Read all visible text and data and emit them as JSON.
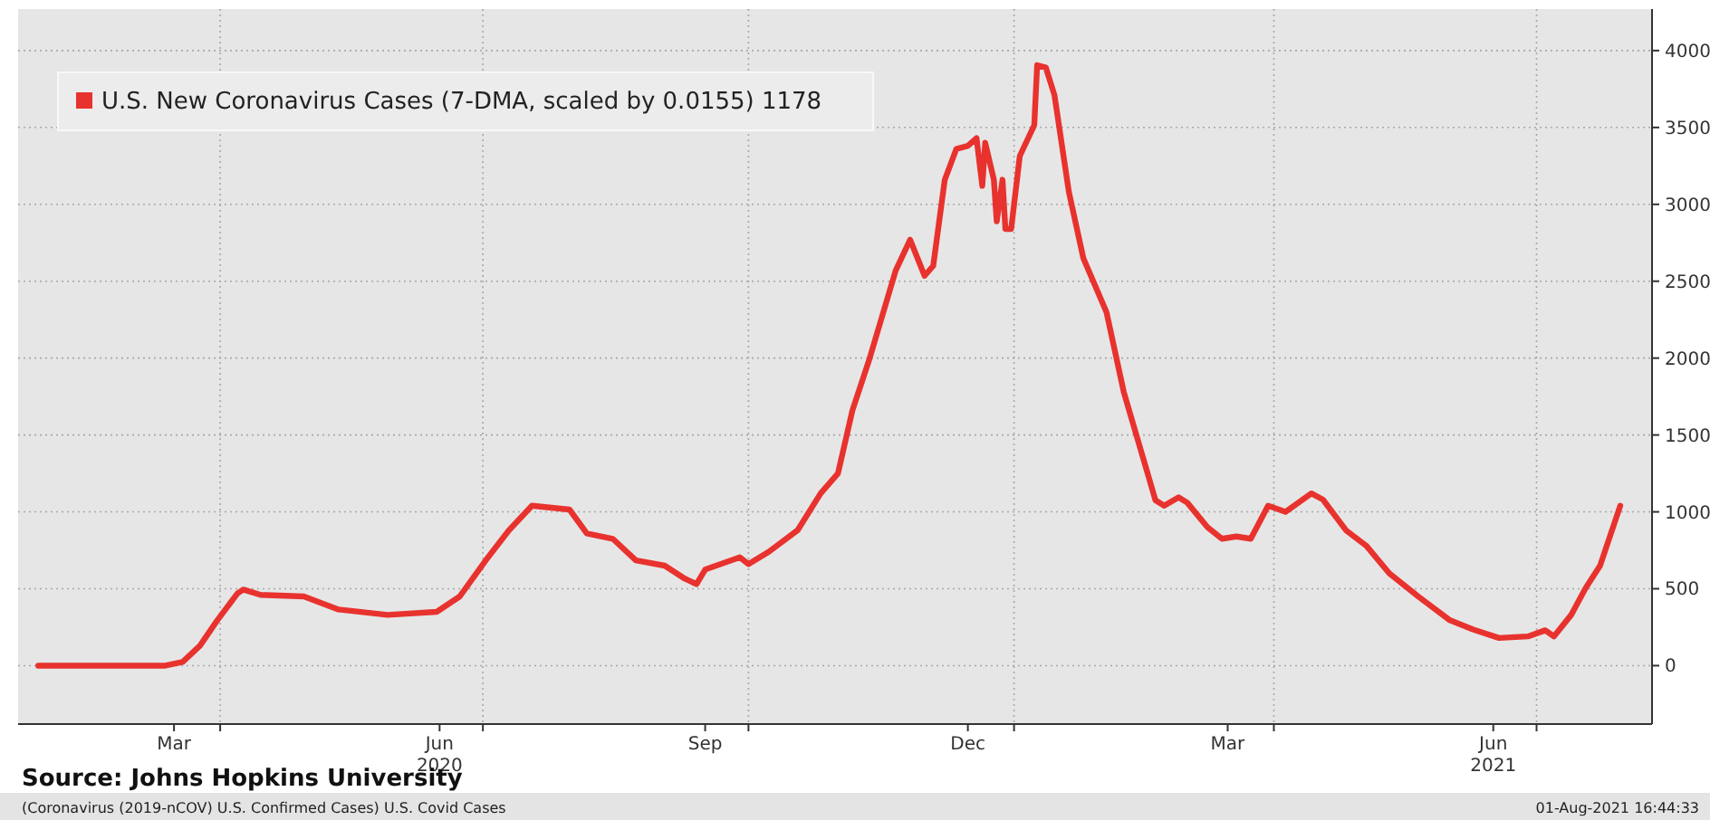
{
  "chart_data": {
    "type": "line",
    "x": [
      "2020-01-29",
      "2020-03-13",
      "2020-03-19",
      "2020-03-25",
      "2020-03-31",
      "2020-04-07",
      "2020-04-09",
      "2020-04-15",
      "2020-04-30",
      "2020-05-12",
      "2020-05-29",
      "2020-06-15",
      "2020-06-23",
      "2020-07-02",
      "2020-07-10",
      "2020-07-18",
      "2020-07-31",
      "2020-08-06",
      "2020-08-15",
      "2020-08-23",
      "2020-09-02",
      "2020-09-09",
      "2020-09-13",
      "2020-09-16",
      "2020-09-28",
      "2020-10-01",
      "2020-10-08",
      "2020-10-18",
      "2020-10-26",
      "2020-11-01",
      "2020-11-06",
      "2020-11-12",
      "2020-11-21",
      "2020-11-26",
      "2020-12-01",
      "2020-12-04",
      "2020-12-08",
      "2020-12-12",
      "2020-12-16",
      "2020-12-19",
      "2020-12-21",
      "2020-12-22",
      "2020-12-25",
      "2020-12-26",
      "2020-12-28",
      "2020-12-29",
      "2020-12-31",
      "2021-01-03",
      "2021-01-08",
      "2021-01-09",
      "2021-01-12",
      "2021-01-15",
      "2021-01-20",
      "2021-01-25",
      "2021-02-02",
      "2021-02-08",
      "2021-02-19",
      "2021-02-22",
      "2021-02-27",
      "2021-03-02",
      "2021-03-09",
      "2021-03-14",
      "2021-03-19",
      "2021-03-24",
      "2021-03-30",
      "2021-04-05",
      "2021-04-14",
      "2021-04-18",
      "2021-04-26",
      "2021-05-03",
      "2021-05-11",
      "2021-05-21",
      "2021-06-01",
      "2021-06-09",
      "2021-06-18",
      "2021-06-28",
      "2021-07-04",
      "2021-07-07",
      "2021-07-13",
      "2021-07-18",
      "2021-07-23",
      "2021-07-30"
    ],
    "series": [
      {
        "name": "U.S. New Coronavirus Cases (7-DMA, scaled by 0.0155) 1178",
        "color": "#e8322e",
        "values": [
          0,
          0,
          24,
          130,
          295,
          470,
          495,
          460,
          450,
          365,
          330,
          350,
          450,
          685,
          880,
          1040,
          1015,
          860,
          825,
          685,
          650,
          565,
          530,
          625,
          705,
          660,
          740,
          880,
          1120,
          1250,
          1660,
          2000,
          2570,
          2770,
          2535,
          2600,
          3160,
          3360,
          3380,
          3430,
          3120,
          3400,
          3160,
          2890,
          3160,
          2840,
          2840,
          3315,
          3515,
          3905,
          3890,
          3710,
          3080,
          2650,
          2300,
          1780,
          1075,
          1040,
          1095,
          1060,
          900,
          825,
          840,
          825,
          1040,
          1000,
          1120,
          1080,
          880,
          780,
          600,
          450,
          295,
          235,
          180,
          190,
          230,
          190,
          330,
          505,
          650,
          1040
        ]
      }
    ],
    "xlim": [
      "2020-01-22",
      "2021-08-10"
    ],
    "xticks": [
      {
        "value": "2020-03-16",
        "label": "Mar"
      },
      {
        "value": "2020-04-01",
        "label": null
      },
      {
        "value": "2020-06-16",
        "label": "Jun\n2020"
      },
      {
        "value": "2020-07-01",
        "label": null
      },
      {
        "value": "2020-09-16",
        "label": "Sep"
      },
      {
        "value": "2020-10-01",
        "label": null
      },
      {
        "value": "2020-12-16",
        "label": "Dec"
      },
      {
        "value": "2021-01-01",
        "label": null
      },
      {
        "value": "2021-03-16",
        "label": "Mar"
      },
      {
        "value": "2021-04-01",
        "label": null
      },
      {
        "value": "2021-06-16",
        "label": "Jun\n2021"
      },
      {
        "value": "2021-07-01",
        "label": null
      }
    ],
    "ylim": [
      -380,
      4270
    ],
    "yticks": [
      0,
      500,
      1000,
      1500,
      2000,
      2500,
      3000,
      3500,
      4000
    ],
    "grid": true,
    "legend": "top left",
    "line_style": "solid",
    "marker": "none",
    "annotations": [
      "Source: Johns Hopkins University",
      "(Coronavirus (2019-nCOV) U.S. Confirmed Cases) U.S. Covid Cases",
      "01-Aug-2021 16:44:33"
    ]
  }
}
